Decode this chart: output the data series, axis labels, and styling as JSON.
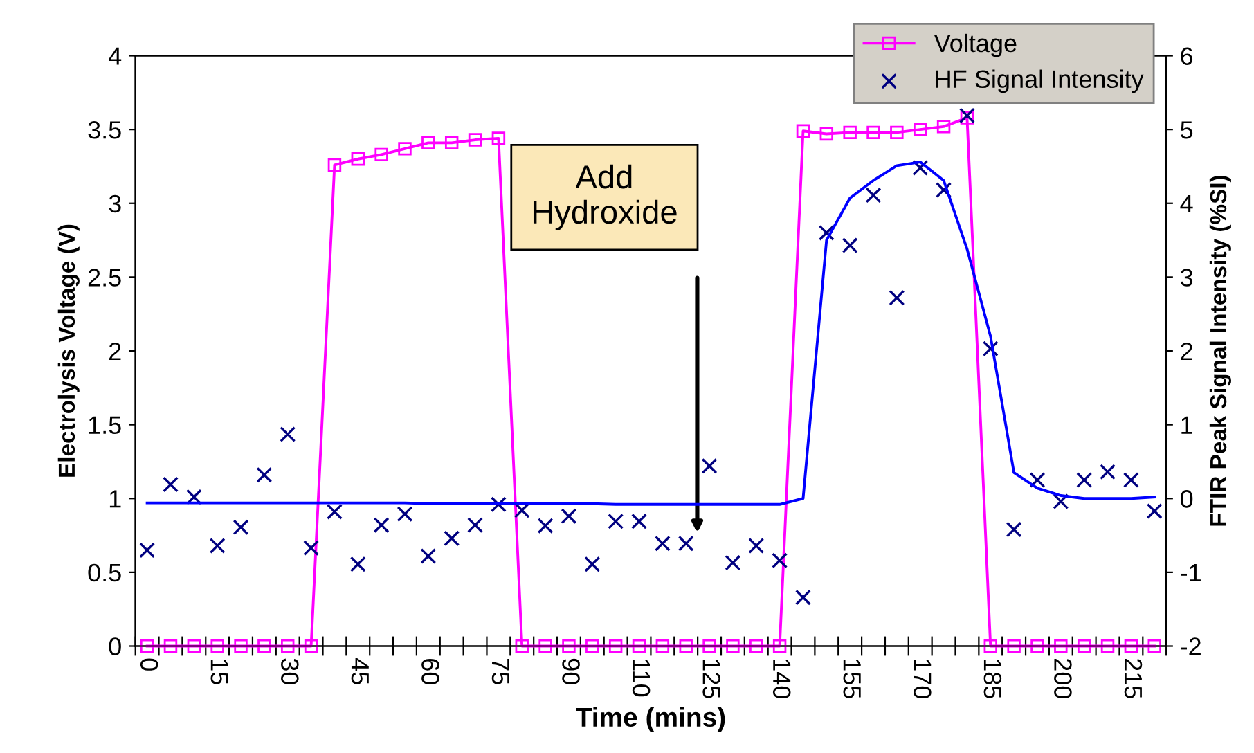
{
  "chart_data": {
    "type": "line",
    "xlabel": "Time (mins)",
    "ylabel": "Electrolysis Voltage (V)",
    "y2label": "FTIR Peak Signal Intensity (%SI)",
    "categories": [
      "0",
      null,
      null,
      "15",
      null,
      null,
      "30",
      null,
      null,
      "45",
      null,
      null,
      "60",
      null,
      null,
      "75",
      null,
      null,
      "90",
      null,
      null,
      "110",
      null,
      null,
      "125",
      null,
      null,
      "140",
      null,
      null,
      "155",
      null,
      null,
      "170",
      null,
      null,
      "185",
      null,
      null,
      "200",
      null,
      null,
      "215",
      null
    ],
    "ylim": [
      0,
      4
    ],
    "yticks": [
      0,
      0.5,
      1,
      1.5,
      2,
      2.5,
      3,
      3.5,
      4
    ],
    "y2lim": [
      -2,
      6
    ],
    "y2ticks": [
      -2,
      -1,
      0,
      1,
      2,
      3,
      4,
      5,
      6
    ],
    "grid": false,
    "legend": "top right",
    "annotations": [
      "Add\nHydroxide"
    ],
    "series": [
      {
        "name": "Voltage",
        "marker": "square",
        "color": "#ff00ff",
        "values": [
          0,
          0,
          0,
          0,
          0,
          0,
          0,
          0,
          3.26,
          3.3,
          3.33,
          3.37,
          3.41,
          3.41,
          3.43,
          3.44,
          0,
          0,
          0,
          0,
          0,
          0,
          0,
          0,
          0,
          0,
          0,
          0,
          3.49,
          3.47,
          3.48,
          3.48,
          3.48,
          3.5,
          3.52,
          3.58,
          0,
          0,
          0,
          0,
          0,
          0,
          0,
          0
        ]
      },
      {
        "name": "HF Signal Intensity",
        "type": "scatter",
        "marker": "cross",
        "axis": "y2",
        "color": "#000080",
        "values": [
          -0.7,
          0.19,
          0.02,
          -0.64,
          -0.39,
          0.32,
          0.87,
          -0.67,
          -0.18,
          -0.89,
          -0.36,
          -0.21,
          -0.78,
          -0.54,
          -0.36,
          -0.08,
          -0.16,
          -0.37,
          -0.24,
          -0.89,
          -0.31,
          -0.31,
          -0.61,
          -0.61,
          0.44,
          -0.87,
          -0.64,
          -0.84,
          -1.34,
          3.6,
          3.43,
          4.11,
          2.72,
          4.48,
          4.18,
          5.19,
          2.03,
          -0.42,
          0.25,
          -0.04,
          0.25,
          0.36,
          0.25,
          -0.17
        ]
      },
      {
        "marker": "none",
        "axis": "y2",
        "color": "#0000ff",
        "values": [
          -0.06,
          -0.06,
          -0.06,
          -0.06,
          -0.06,
          -0.06,
          -0.06,
          -0.06,
          -0.06,
          -0.06,
          -0.06,
          -0.06,
          -0.07,
          -0.07,
          -0.07,
          -0.07,
          -0.07,
          -0.07,
          -0.07,
          -0.07,
          -0.08,
          -0.08,
          -0.08,
          -0.08,
          -0.08,
          -0.08,
          -0.08,
          -0.08,
          0.0,
          3.5,
          4.07,
          4.31,
          4.51,
          4.56,
          4.31,
          3.38,
          2.2,
          0.35,
          0.14,
          0.04,
          0.0,
          0.0,
          0.0,
          0.02
        ]
      }
    ]
  }
}
